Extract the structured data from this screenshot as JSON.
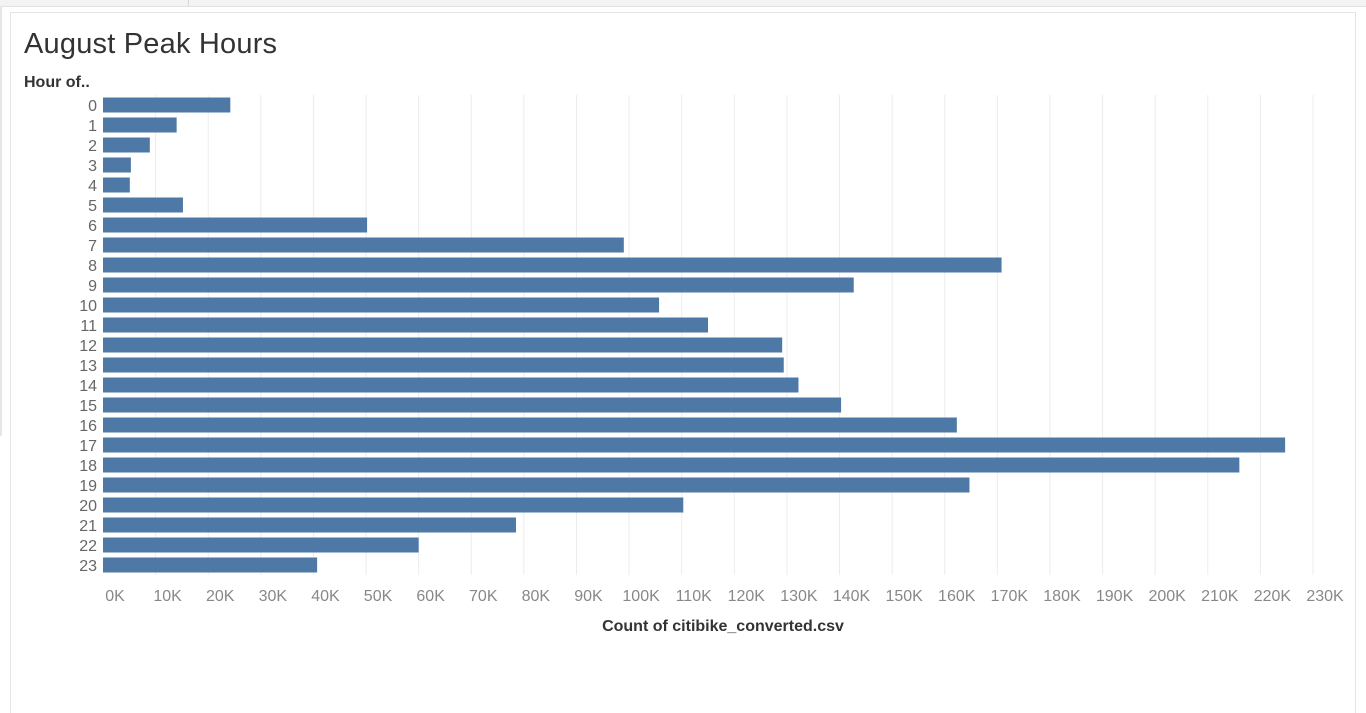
{
  "chart_data": {
    "type": "bar",
    "orientation": "horizontal",
    "title": "August Peak Hours",
    "ylabel": "Hour of..",
    "xlabel": "Count of citibike_converted.csv",
    "categories": [
      "0",
      "1",
      "2",
      "3",
      "4",
      "5",
      "6",
      "7",
      "8",
      "9",
      "10",
      "11",
      "12",
      "13",
      "14",
      "15",
      "16",
      "17",
      "18",
      "19",
      "20",
      "21",
      "22",
      "23"
    ],
    "values": [
      24200,
      14000,
      8900,
      5300,
      5100,
      15200,
      50200,
      99000,
      170800,
      142700,
      105700,
      115000,
      129100,
      129400,
      132200,
      140300,
      162300,
      224700,
      216000,
      164700,
      110300,
      78500,
      60000,
      40700
    ],
    "xlim": [
      0,
      230000
    ],
    "x_ticks": [
      "0K",
      "10K",
      "20K",
      "30K",
      "40K",
      "50K",
      "60K",
      "70K",
      "80K",
      "90K",
      "100K",
      "110K",
      "120K",
      "130K",
      "140K",
      "150K",
      "160K",
      "170K",
      "180K",
      "190K",
      "200K",
      "210K",
      "220K",
      "230K"
    ],
    "grid": true,
    "bar_color": "#4e79a7",
    "grid_color": "#ececec"
  }
}
